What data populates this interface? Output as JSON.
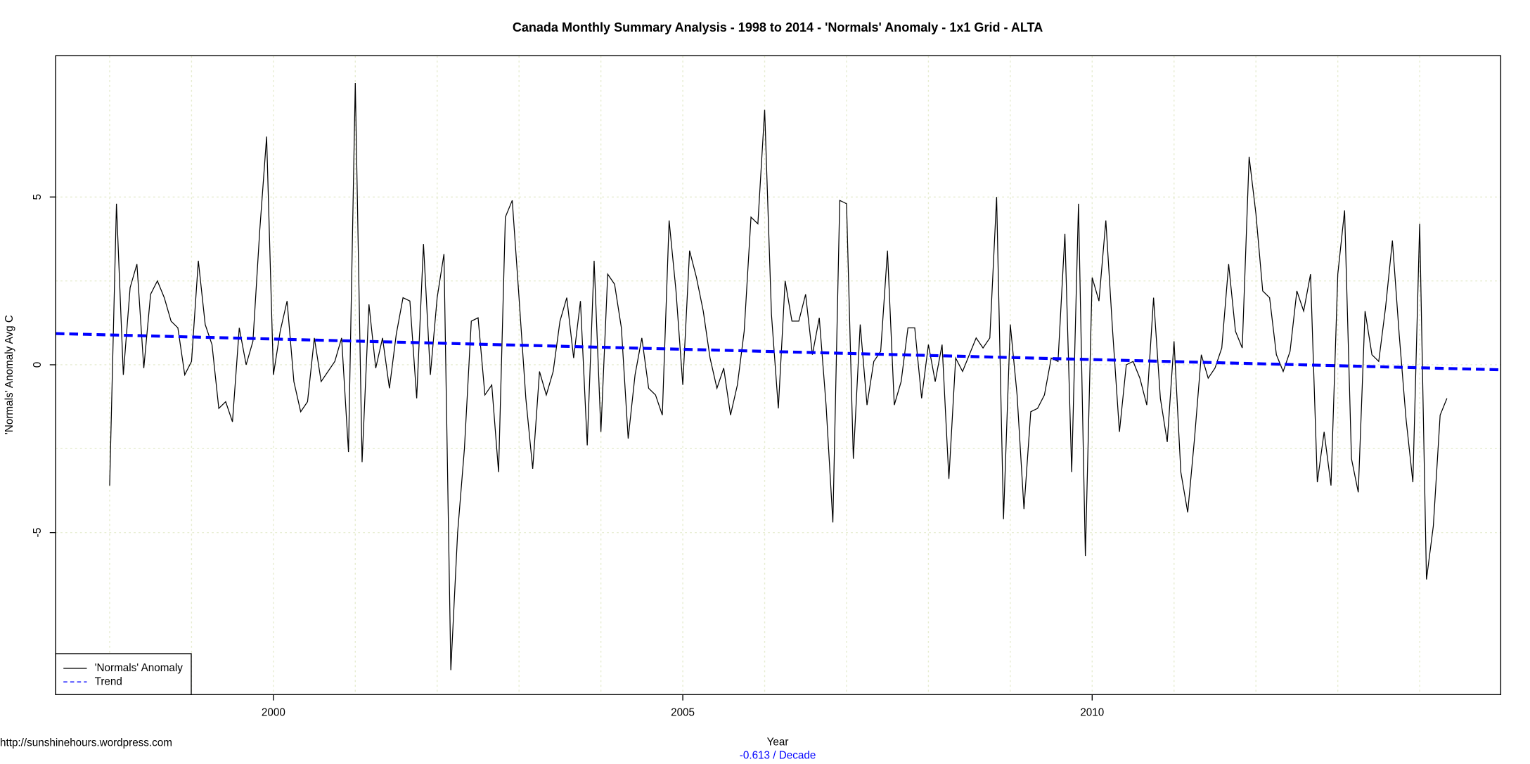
{
  "chart_data": {
    "type": "line",
    "title": "Canada Monthly Summary Analysis - 1998 to 2014 - 'Normals' Anomaly - 1x1 Grid - ALTA",
    "xlabel": "Year",
    "ylabel": "'Normals' Anomaly Avg C",
    "footer": "http://sunshinehours.wordpress.com",
    "annotation": "-0.613  / Decade",
    "annotation_color": "#0000ff",
    "xlim": [
      1997.34,
      2014.99
    ],
    "ylim": [
      -9.83,
      9.21
    ],
    "xticks": [
      2000,
      2005,
      2010
    ],
    "yticks": [
      -5,
      0,
      5
    ],
    "grid": true,
    "xgrid": [
      1998,
      1999,
      2000,
      2001,
      2002,
      2003,
      2004,
      2005,
      2006,
      2007,
      2008,
      2009,
      2010,
      2011,
      2012,
      2013,
      2014
    ],
    "ygrid": [
      -5,
      -2.5,
      0,
      2.5,
      5
    ],
    "legend": "bottom-left",
    "series": [
      {
        "name": "'Normals' Anomaly",
        "color": "#000000",
        "dash": false,
        "x": [
          1998,
          1998.083,
          1998.167,
          1998.25,
          1998.333,
          1998.417,
          1998.5,
          1998.583,
          1998.667,
          1998.75,
          1998.833,
          1998.917,
          1999,
          1999.083,
          1999.167,
          1999.25,
          1999.333,
          1999.417,
          1999.5,
          1999.583,
          1999.667,
          1999.75,
          1999.833,
          1999.917,
          2000,
          2000.083,
          2000.167,
          2000.25,
          2000.333,
          2000.417,
          2000.5,
          2000.583,
          2000.667,
          2000.75,
          2000.833,
          2000.917,
          2001,
          2001.083,
          2001.167,
          2001.25,
          2001.333,
          2001.417,
          2001.5,
          2001.583,
          2001.667,
          2001.75,
          2001.833,
          2001.917,
          2002,
          2002.083,
          2002.167,
          2002.25,
          2002.333,
          2002.417,
          2002.5,
          2002.583,
          2002.667,
          2002.75,
          2002.833,
          2002.917,
          2003,
          2003.083,
          2003.167,
          2003.25,
          2003.333,
          2003.417,
          2003.5,
          2003.583,
          2003.667,
          2003.75,
          2003.833,
          2003.917,
          2004,
          2004.083,
          2004.167,
          2004.25,
          2004.333,
          2004.417,
          2004.5,
          2004.583,
          2004.667,
          2004.75,
          2004.833,
          2004.917,
          2005,
          2005.083,
          2005.167,
          2005.25,
          2005.333,
          2005.417,
          2005.5,
          2005.583,
          2005.667,
          2005.75,
          2005.833,
          2005.917,
          2006,
          2006.083,
          2006.167,
          2006.25,
          2006.333,
          2006.417,
          2006.5,
          2006.583,
          2006.667,
          2006.75,
          2006.833,
          2006.917,
          2007,
          2007.083,
          2007.167,
          2007.25,
          2007.333,
          2007.417,
          2007.5,
          2007.583,
          2007.667,
          2007.75,
          2007.833,
          2007.917,
          2008,
          2008.083,
          2008.167,
          2008.25,
          2008.333,
          2008.417,
          2008.5,
          2008.583,
          2008.667,
          2008.75,
          2008.833,
          2008.917,
          2009,
          2009.083,
          2009.167,
          2009.25,
          2009.333,
          2009.417,
          2009.5,
          2009.583,
          2009.667,
          2009.75,
          2009.833,
          2009.917,
          2010,
          2010.083,
          2010.167,
          2010.25,
          2010.333,
          2010.417,
          2010.5,
          2010.583,
          2010.667,
          2010.75,
          2010.833,
          2010.917,
          2011,
          2011.083,
          2011.167,
          2011.25,
          2011.333,
          2011.417,
          2011.5,
          2011.583,
          2011.667,
          2011.75,
          2011.833,
          2011.917,
          2012,
          2012.083,
          2012.167,
          2012.25,
          2012.333,
          2012.417,
          2012.5,
          2012.583,
          2012.667,
          2012.75,
          2012.833,
          2012.917,
          2013,
          2013.083,
          2013.167,
          2013.25,
          2013.333,
          2013.417,
          2013.5,
          2013.583,
          2013.667,
          2013.75,
          2013.833,
          2013.917,
          2014,
          2014.083,
          2014.167,
          2014.25,
          2014.333
        ],
        "values": [
          -3.6,
          4.8,
          -0.3,
          2.3,
          3.0,
          -0.1,
          2.1,
          2.5,
          2.0,
          1.3,
          1.1,
          -0.3,
          0.1,
          3.1,
          1.2,
          0.6,
          -1.3,
          -1.1,
          -1.7,
          1.1,
          0.0,
          0.7,
          4.0,
          6.8,
          -0.3,
          1.0,
          1.9,
          -0.5,
          -1.4,
          -1.1,
          0.8,
          -0.5,
          -0.2,
          0.1,
          0.8,
          -2.6,
          8.4,
          -2.9,
          1.8,
          -0.1,
          0.8,
          -0.7,
          0.9,
          2.0,
          1.9,
          -1.0,
          3.6,
          -0.3,
          2.0,
          3.3,
          -9.1,
          -5.0,
          -2.5,
          1.3,
          1.4,
          -0.9,
          -0.6,
          -3.2,
          4.4,
          4.9,
          2.0,
          -1.0,
          -3.1,
          -0.2,
          -0.9,
          -0.2,
          1.3,
          2.0,
          0.2,
          1.9,
          -2.4,
          3.1,
          -2.0,
          2.7,
          2.4,
          1.1,
          -2.2,
          -0.3,
          0.8,
          -0.7,
          -0.9,
          -1.5,
          4.3,
          2.2,
          -0.6,
          3.4,
          2.6,
          1.6,
          0.2,
          -0.7,
          -0.1,
          -1.5,
          -0.6,
          1.0,
          4.4,
          4.2,
          7.6,
          1.5,
          -1.3,
          2.5,
          1.3,
          1.3,
          2.1,
          0.3,
          1.4,
          -1.2,
          -4.7,
          4.9,
          4.8,
          -2.8,
          1.2,
          -1.2,
          0.1,
          0.4,
          3.4,
          -1.2,
          -0.5,
          1.1,
          1.1,
          -1.0,
          0.6,
          -0.5,
          0.6,
          -3.4,
          0.2,
          -0.2,
          0.3,
          0.8,
          0.5,
          0.8,
          5.0,
          -4.6,
          1.2,
          -0.9,
          -4.3,
          -1.4,
          -1.3,
          -0.9,
          0.2,
          0.1,
          3.9,
          -3.2,
          4.8,
          -5.7,
          2.6,
          1.9,
          4.3,
          1.0,
          -2.0,
          0.0,
          0.1,
          -0.4,
          -1.2,
          2.0,
          -1.0,
          -2.3,
          0.7,
          -3.2,
          -4.4,
          -2.2,
          0.3,
          -0.4,
          -0.1,
          0.5,
          3.0,
          1.0,
          0.5,
          6.2,
          4.5,
          2.2,
          2.0,
          0.3,
          -0.2,
          0.4,
          2.2,
          1.6,
          2.7,
          -3.5,
          -2.0,
          -3.6,
          2.7,
          4.6,
          -2.8,
          -3.8,
          1.6,
          0.3,
          0.1,
          1.7,
          3.7,
          0.9,
          -1.6,
          -3.5,
          4.2,
          -6.4,
          -4.8,
          -1.5,
          -1.0
        ]
      },
      {
        "name": "Trend",
        "color": "#0000ff",
        "dash": true,
        "x": [
          1997.34,
          2014.99
        ],
        "values": [
          0.93,
          -0.15
        ]
      }
    ]
  }
}
